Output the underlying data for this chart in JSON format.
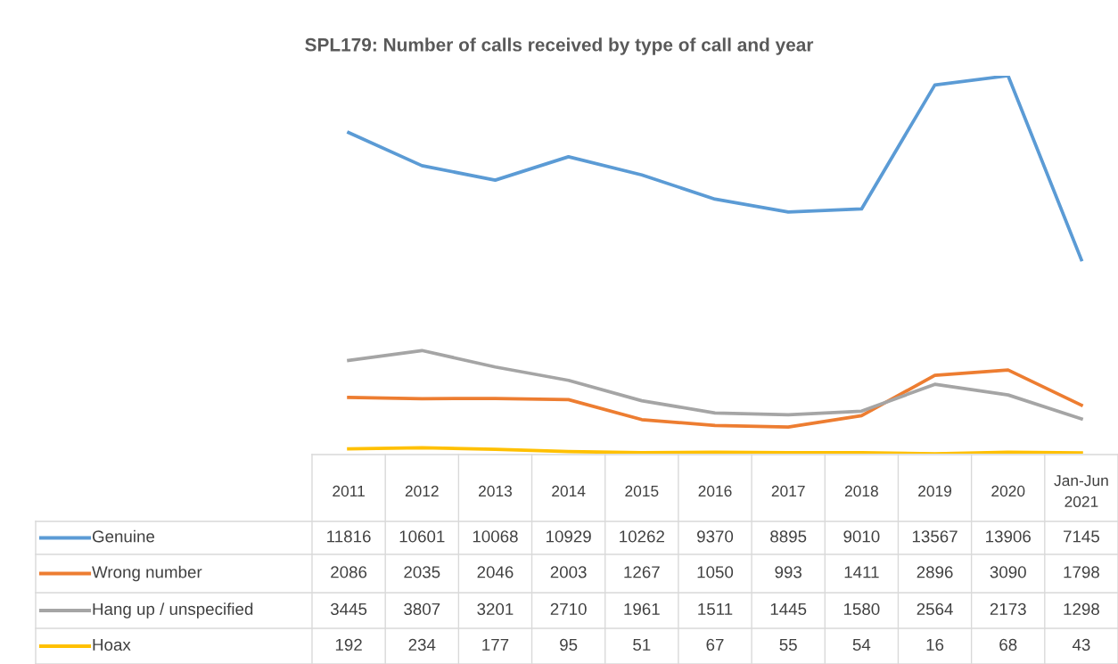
{
  "chart_data": {
    "type": "line",
    "title": "SPL179: Number of calls received by type of call and year",
    "categories": [
      "2011",
      "2012",
      "2013",
      "2014",
      "2015",
      "2016",
      "2017",
      "2018",
      "2019",
      "2020",
      "Jan-Jun\n2021"
    ],
    "series": [
      {
        "name": "Genuine",
        "color": "#5b9bd5",
        "values": [
          11816,
          10601,
          10068,
          10929,
          10262,
          9370,
          8895,
          9010,
          13567,
          13906,
          7145
        ]
      },
      {
        "name": "Wrong number",
        "color": "#ed7d31",
        "values": [
          2086,
          2035,
          2046,
          2003,
          1267,
          1050,
          993,
          1411,
          2896,
          3090,
          1798
        ]
      },
      {
        "name": "Hang up / unspecified",
        "color": "#a5a5a5",
        "values": [
          3445,
          3807,
          3201,
          2710,
          1961,
          1511,
          1445,
          1580,
          2564,
          2173,
          1298
        ]
      },
      {
        "name": "Hoax",
        "color": "#ffc000",
        "values": [
          192,
          234,
          177,
          95,
          51,
          67,
          55,
          54,
          16,
          68,
          43
        ]
      }
    ],
    "data_labels": true,
    "legend": "left",
    "marker": "none",
    "line_style": "solid",
    "tick_labels": false
  }
}
